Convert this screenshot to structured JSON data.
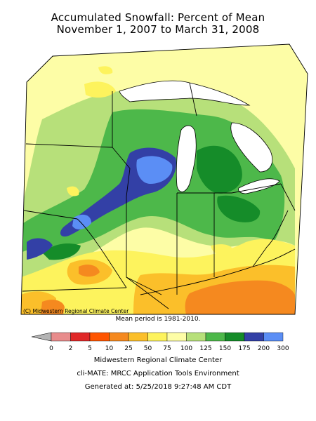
{
  "title_line1": "Accumulated Snowfall: Percent of Mean",
  "title_line2": "November 1, 2007 to March 31, 2008",
  "credit": "(C) Midwestern Regional Climate Center",
  "mean_period": "Mean period is 1981-2010.",
  "legend": {
    "ticks": [
      "0",
      "2",
      "5",
      "10",
      "25",
      "50",
      "75",
      "100",
      "125",
      "150",
      "175",
      "200",
      "300"
    ],
    "colors": [
      "#b4b4b4",
      "#e88c8c",
      "#e02828",
      "#ff5500",
      "#f5891f",
      "#fbbf2a",
      "#fdf35d",
      "#fdfda6",
      "#b7e07a",
      "#4db84a",
      "#158c29",
      "#3340a6",
      "#5b8ef5"
    ]
  },
  "footer": {
    "line1": "Midwestern Regional Climate Center",
    "line2": "cli-MATE: MRCC Application Tools Environment",
    "line3": "Generated at: 5/25/2018 9:27:48 AM CDT"
  }
}
